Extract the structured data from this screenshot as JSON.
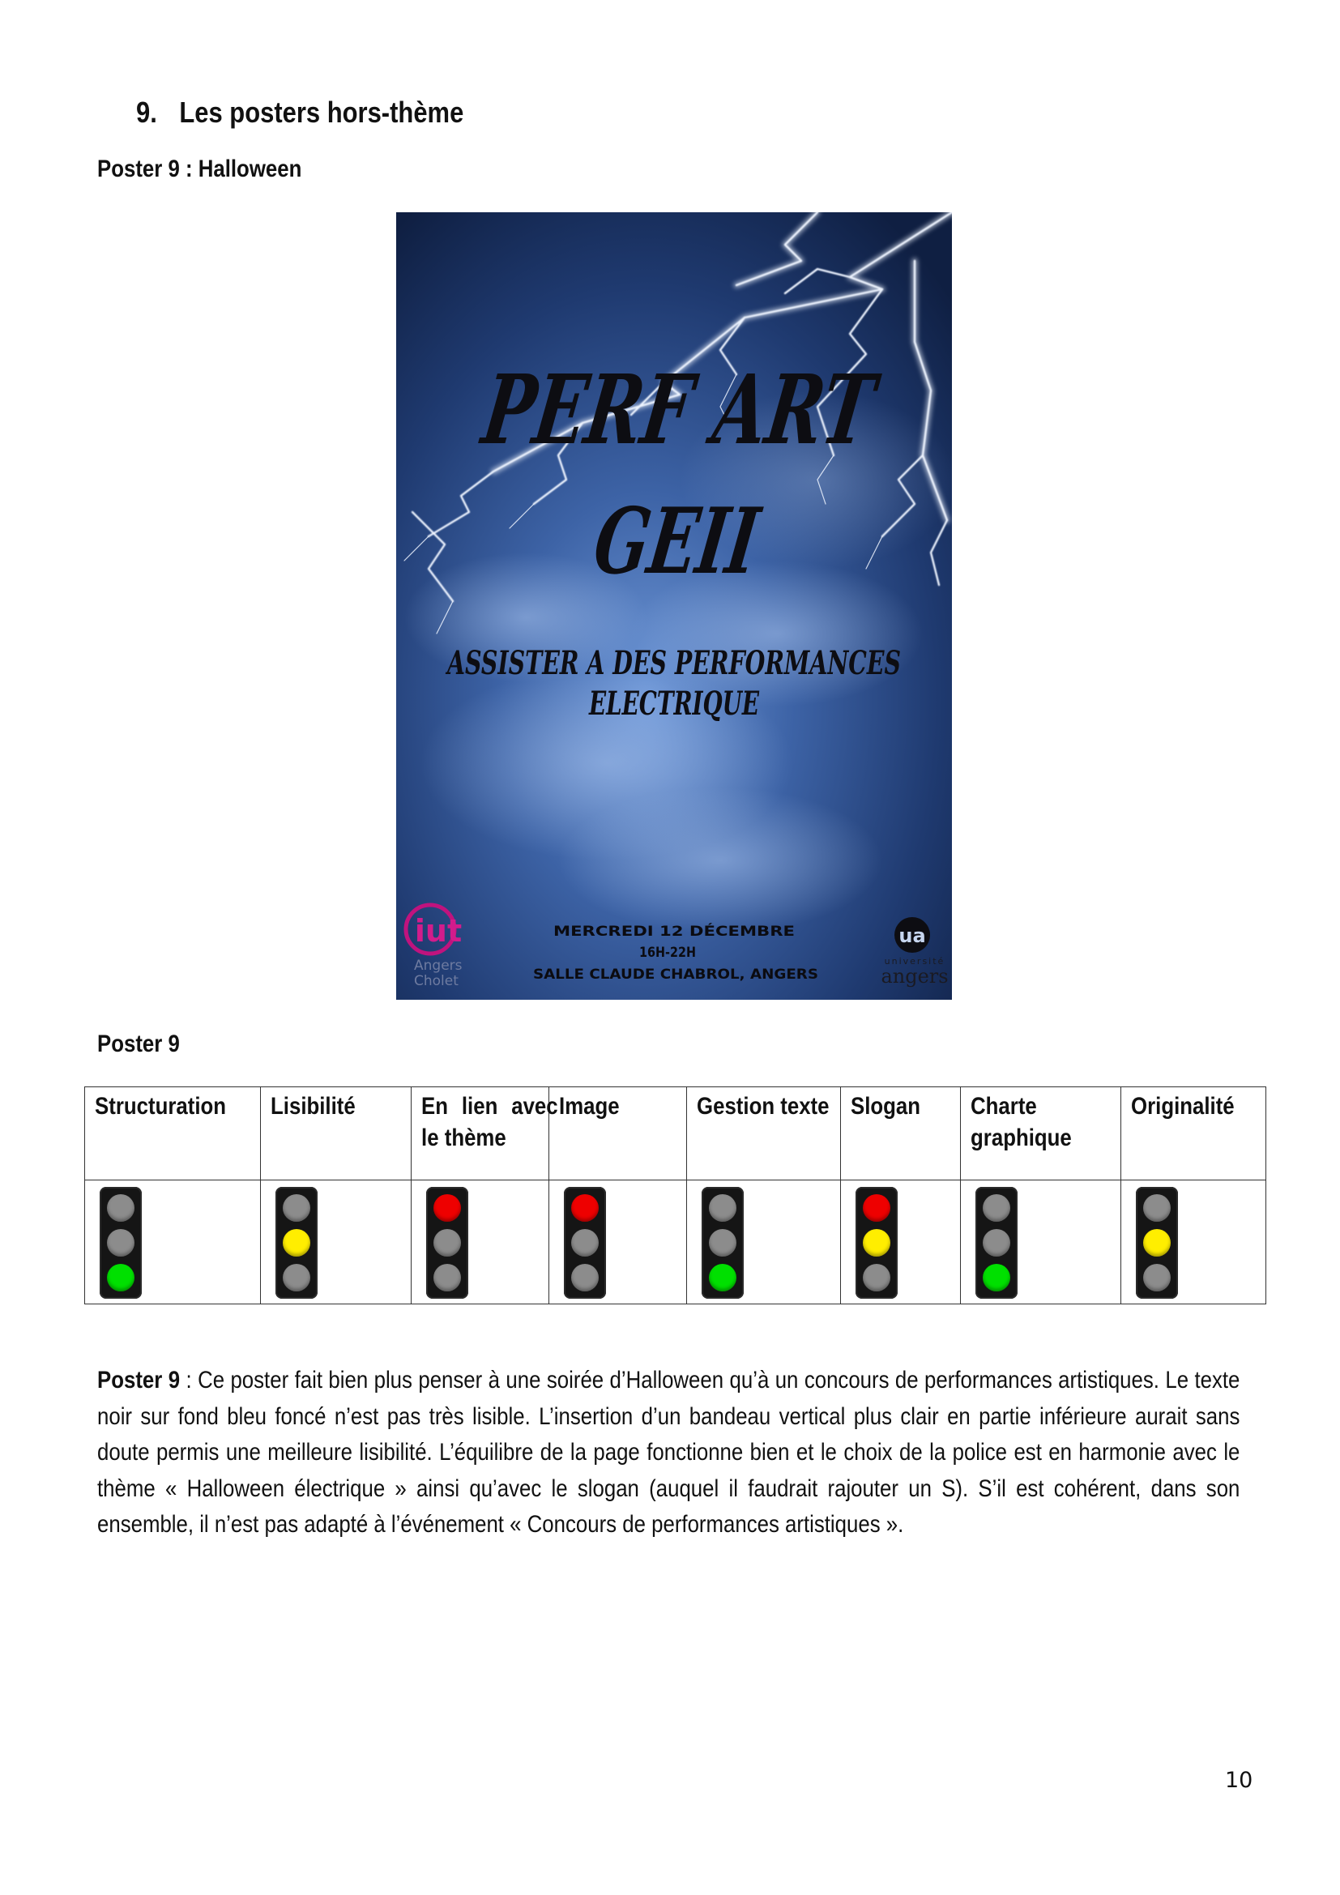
{
  "section": {
    "number": "9.",
    "title": "Les posters hors-thème"
  },
  "poster_caption": "Poster 9 : Halloween",
  "poster": {
    "title_line1": "PERF ART",
    "title_line2": "GEII",
    "subtitle_line1": "ASSISTER A DES PERFORMANCES",
    "subtitle_line2": "ELECTRIQUE",
    "date": "MERCREDI 12 DÉCEMBRE",
    "time": "16H-22H",
    "place": "SALLE CLAUDE CHABROL, ANGERS",
    "logo_left_mark": "iut",
    "logo_left_text1": "Angers",
    "logo_left_text2": "Cholet",
    "logo_right_mark": "ua",
    "logo_right_text1": "université",
    "logo_right_text2": "angers",
    "colors": {
      "sky": "#1b3566",
      "sky_light": "#5a86c8",
      "lightning": "#e8f0ff",
      "title": "#0d0d12"
    }
  },
  "table_caption": "Poster 9",
  "table": {
    "columns": [
      {
        "label": "Structuration",
        "light": "green"
      },
      {
        "label": "Lisibilité",
        "light": "yellow"
      },
      {
        "label": "En lien avec le thème",
        "light": "red"
      },
      {
        "label": "Image",
        "light": "red"
      },
      {
        "label": "Gestion texte",
        "light": "green"
      },
      {
        "label": "Slogan",
        "light": "red-yellow"
      },
      {
        "label": "Charte graphique",
        "light": "green"
      },
      {
        "label": "Originalité",
        "light": "yellow"
      }
    ],
    "colors": {
      "red": "#ee0000",
      "yellow": "#ffee00",
      "green": "#00e000",
      "off": "#8c8c8c"
    }
  },
  "comment": {
    "lead": "Poster 9",
    "text": " : Ce poster fait bien plus penser à une soirée d’Halloween qu’à un concours de performances artistiques. Le texte noir sur fond bleu foncé n’est pas très lisible. L’insertion d’un bandeau vertical plus clair en partie inférieure aurait sans doute permis une meilleure lisibilité. L’équilibre de la page fonctionne bien et le choix de la police est en harmonie avec le thème « Halloween électrique » ainsi qu’avec le slogan (auquel il faudrait rajouter un S). S’il est cohérent, dans son ensemble, il n’est pas adapté à l’événement « Concours de performances artistiques »."
  },
  "page_number": "10"
}
